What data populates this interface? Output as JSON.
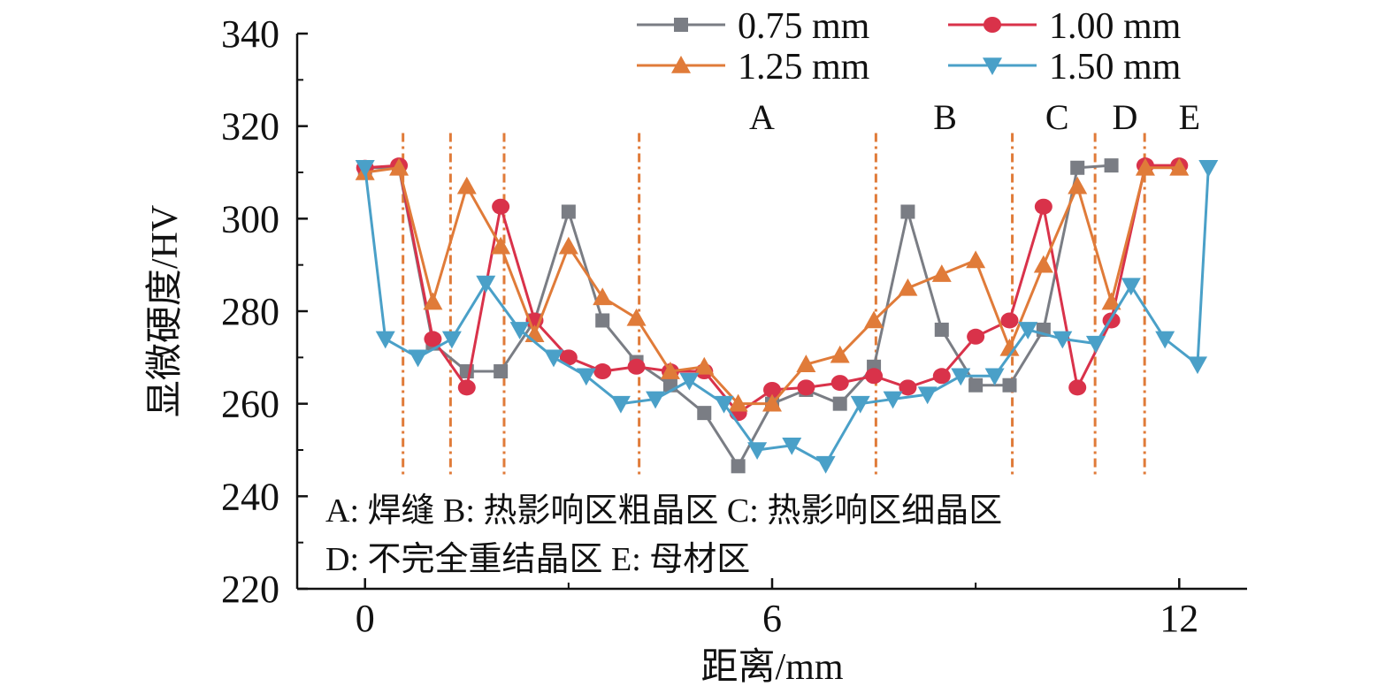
{
  "chart_data": {
    "type": "line",
    "xlabel": "距离/mm",
    "ylabel": "显微硬度/HV",
    "xlim": [
      -1,
      13
    ],
    "ylim": [
      220,
      340
    ],
    "xticks": [
      0,
      6,
      12
    ],
    "yticks": [
      220,
      240,
      260,
      280,
      300,
      320,
      340
    ],
    "grid": false,
    "legend_position": "top-right",
    "series": [
      {
        "name": "0.75 mm",
        "color": "#7a7d84",
        "marker": "square",
        "x": [
          0,
          0.5,
          1,
          1.5,
          2,
          2.5,
          3,
          3.5,
          4,
          4.5,
          5,
          5.5,
          6,
          6.5,
          7,
          7.5,
          8,
          8.5,
          9,
          9.5,
          10,
          10.5,
          11
        ],
        "y": [
          311,
          311,
          273,
          267,
          267,
          278,
          301.5,
          278,
          269,
          264,
          258,
          246.5,
          260,
          263,
          260,
          268,
          301.5,
          276,
          264,
          264,
          276,
          311,
          311.5
        ]
      },
      {
        "name": "1.00 mm",
        "color": "#d9324a",
        "marker": "circle",
        "x": [
          0,
          0.5,
          1,
          1.5,
          2,
          2.5,
          3,
          3.5,
          4,
          4.5,
          5,
          5.5,
          6,
          6.5,
          7,
          7.5,
          8,
          8.5,
          9,
          9.5,
          10,
          10.5,
          11,
          11.5,
          12
        ],
        "y": [
          311,
          311.5,
          274,
          263.5,
          302.6,
          278,
          270,
          267,
          268,
          267,
          267,
          258,
          263,
          263.5,
          264.5,
          266,
          263.5,
          266,
          274.5,
          278,
          302.6,
          263.5,
          278,
          311.5,
          311.5
        ]
      },
      {
        "name": "1.25 mm",
        "color": "#e07b39",
        "marker": "triangle-up",
        "x": [
          0,
          0.5,
          1,
          1.5,
          2,
          2.5,
          3,
          3.5,
          4,
          4.5,
          5,
          5.5,
          6,
          6.5,
          7,
          7.5,
          8,
          8.5,
          9,
          9.5,
          10,
          10.5,
          11,
          11.5,
          12
        ],
        "y": [
          310,
          311,
          282,
          307,
          294,
          275,
          294,
          283,
          278.5,
          267,
          268,
          260,
          260,
          268.5,
          270.5,
          278,
          285,
          288,
          291,
          272,
          290,
          307,
          282,
          311,
          311
        ]
      },
      {
        "name": "1.50 mm",
        "color": "#4aa0c8",
        "marker": "triangle-down",
        "x": [
          0,
          0.3,
          0.78,
          1.28,
          1.78,
          2.28,
          2.78,
          3.26,
          3.77,
          4.28,
          4.78,
          5.29,
          5.78,
          6.29,
          6.79,
          7.3,
          7.78,
          8.29,
          8.78,
          9.28,
          9.77,
          10.28,
          10.77,
          11.29,
          11.79,
          12.27,
          12.43
        ],
        "y": [
          311,
          274,
          270,
          274,
          286,
          276,
          270,
          266,
          260,
          261,
          265,
          260,
          250,
          251,
          247,
          260,
          261,
          262,
          266,
          266,
          276,
          274,
          273,
          285.5,
          274,
          268.5,
          311
        ]
      }
    ],
    "boundaries": {
      "x": [
        0.56,
        1.26,
        2.05,
        4.04,
        7.53,
        9.54,
        10.76,
        11.49
      ],
      "color": "#e07b39",
      "y_range": [
        244,
        318.5
      ]
    },
    "zone_labels": [
      {
        "text": "A",
        "x": 5.85,
        "y": 322
      },
      {
        "text": "B",
        "x": 8.55,
        "y": 322
      },
      {
        "text": "C",
        "x": 10.2,
        "y": 322
      },
      {
        "text": "D",
        "x": 11.2,
        "y": 322
      },
      {
        "text": "E",
        "x": 12.15,
        "y": 322
      }
    ],
    "annotations": [
      "A: 焊缝 B: 热影响区粗晶区 C: 热影响区细晶区",
      "D: 不完全重结晶区 E: 母材区"
    ]
  }
}
